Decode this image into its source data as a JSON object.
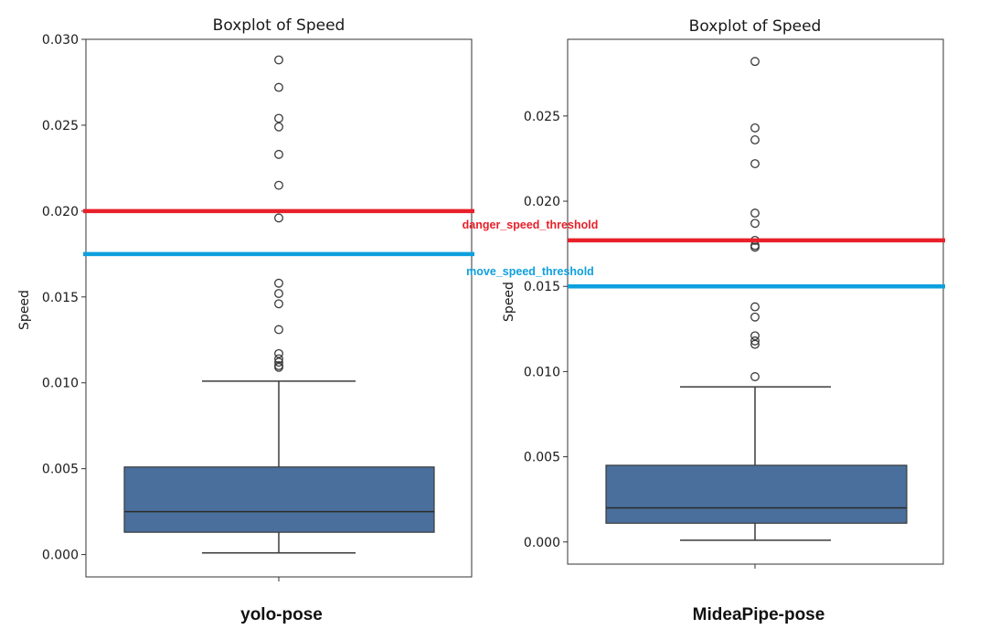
{
  "chart_data": [
    {
      "type": "box",
      "title": "Boxplot of Speed",
      "ylabel": "Speed",
      "xlabel": "",
      "ylim": [
        -0.0013,
        0.03
      ],
      "yticks": [
        "0.000",
        "0.005",
        "0.010",
        "0.015",
        "0.020",
        "0.025",
        "0.030"
      ],
      "box": {
        "whisker_low": 0.0001,
        "q1": 0.0013,
        "median": 0.0025,
        "q3": 0.0051,
        "whisker_high": 0.0101
      },
      "outliers": [
        0.0109,
        0.011,
        0.0112,
        0.0114,
        0.0117,
        0.0131,
        0.0146,
        0.0152,
        0.0158,
        0.0196,
        0.0215,
        0.0233,
        0.0249,
        0.0254,
        0.0272,
        0.0288
      ],
      "thresholds": [
        {
          "label": "danger_speed_threshold",
          "value": 0.02,
          "color": "#e8202a"
        },
        {
          "label": "move_speed_threshold",
          "value": 0.0175,
          "color": "#0ea0de"
        }
      ],
      "caption": "yolo-pose",
      "box_color": "#4a6f9c"
    },
    {
      "type": "box",
      "title": "Boxplot of Speed",
      "ylabel": "Speed",
      "xlabel": "",
      "ylim": [
        -0.0013,
        0.0295
      ],
      "yticks": [
        "0.000",
        "0.005",
        "0.010",
        "0.015",
        "0.020",
        "0.025"
      ],
      "box": {
        "whisker_low": 0.0001,
        "q1": 0.0011,
        "median": 0.002,
        "q3": 0.0045,
        "whisker_high": 0.0091
      },
      "outliers": [
        0.0097,
        0.0116,
        0.0118,
        0.0121,
        0.0132,
        0.0138,
        0.0173,
        0.0174,
        0.0177,
        0.0187,
        0.0193,
        0.0222,
        0.0236,
        0.0243,
        0.0282
      ],
      "thresholds": [
        {
          "label": "danger_speed_threshold",
          "value": 0.0177,
          "color": "#e8202a"
        },
        {
          "label": "move_speed_threshold",
          "value": 0.015,
          "color": "#0ea0de"
        }
      ],
      "caption": "MideaPipe-pose",
      "box_color": "#4a6f9c"
    }
  ]
}
